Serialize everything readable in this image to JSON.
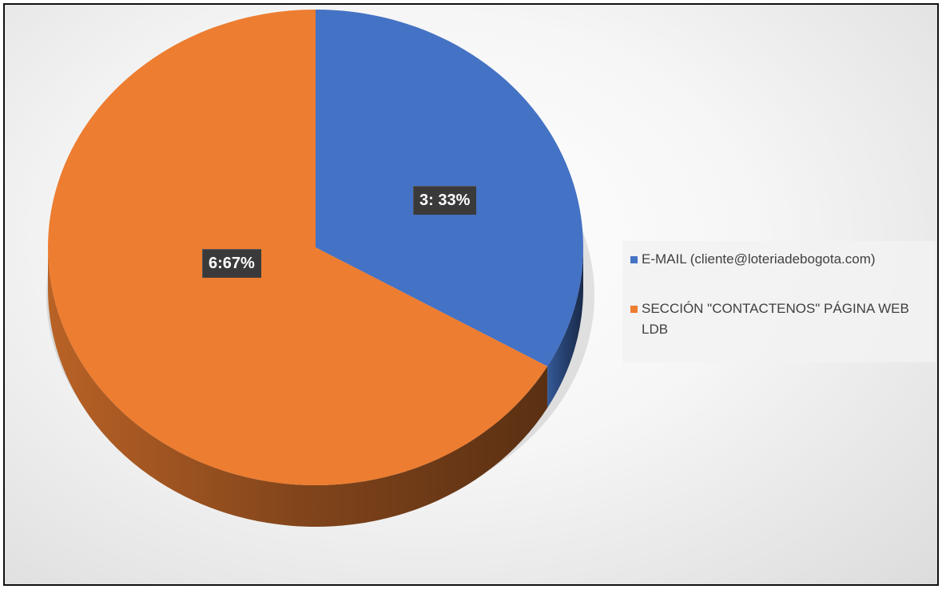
{
  "chart_data": {
    "type": "pie",
    "three_d": true,
    "slices": [
      {
        "name": "E-MAIL (cliente@loteriadebogota.com)",
        "value": 3,
        "percent": 33,
        "label": "3: 33%",
        "color": "#4472C4"
      },
      {
        "name": "SECCIÓN \"CONTACTENOS\" PÁGINA WEB LDB",
        "value": 6,
        "percent": 67,
        "label": "6:67%",
        "color": "#ED7D31"
      }
    ],
    "legend_position": "right"
  }
}
